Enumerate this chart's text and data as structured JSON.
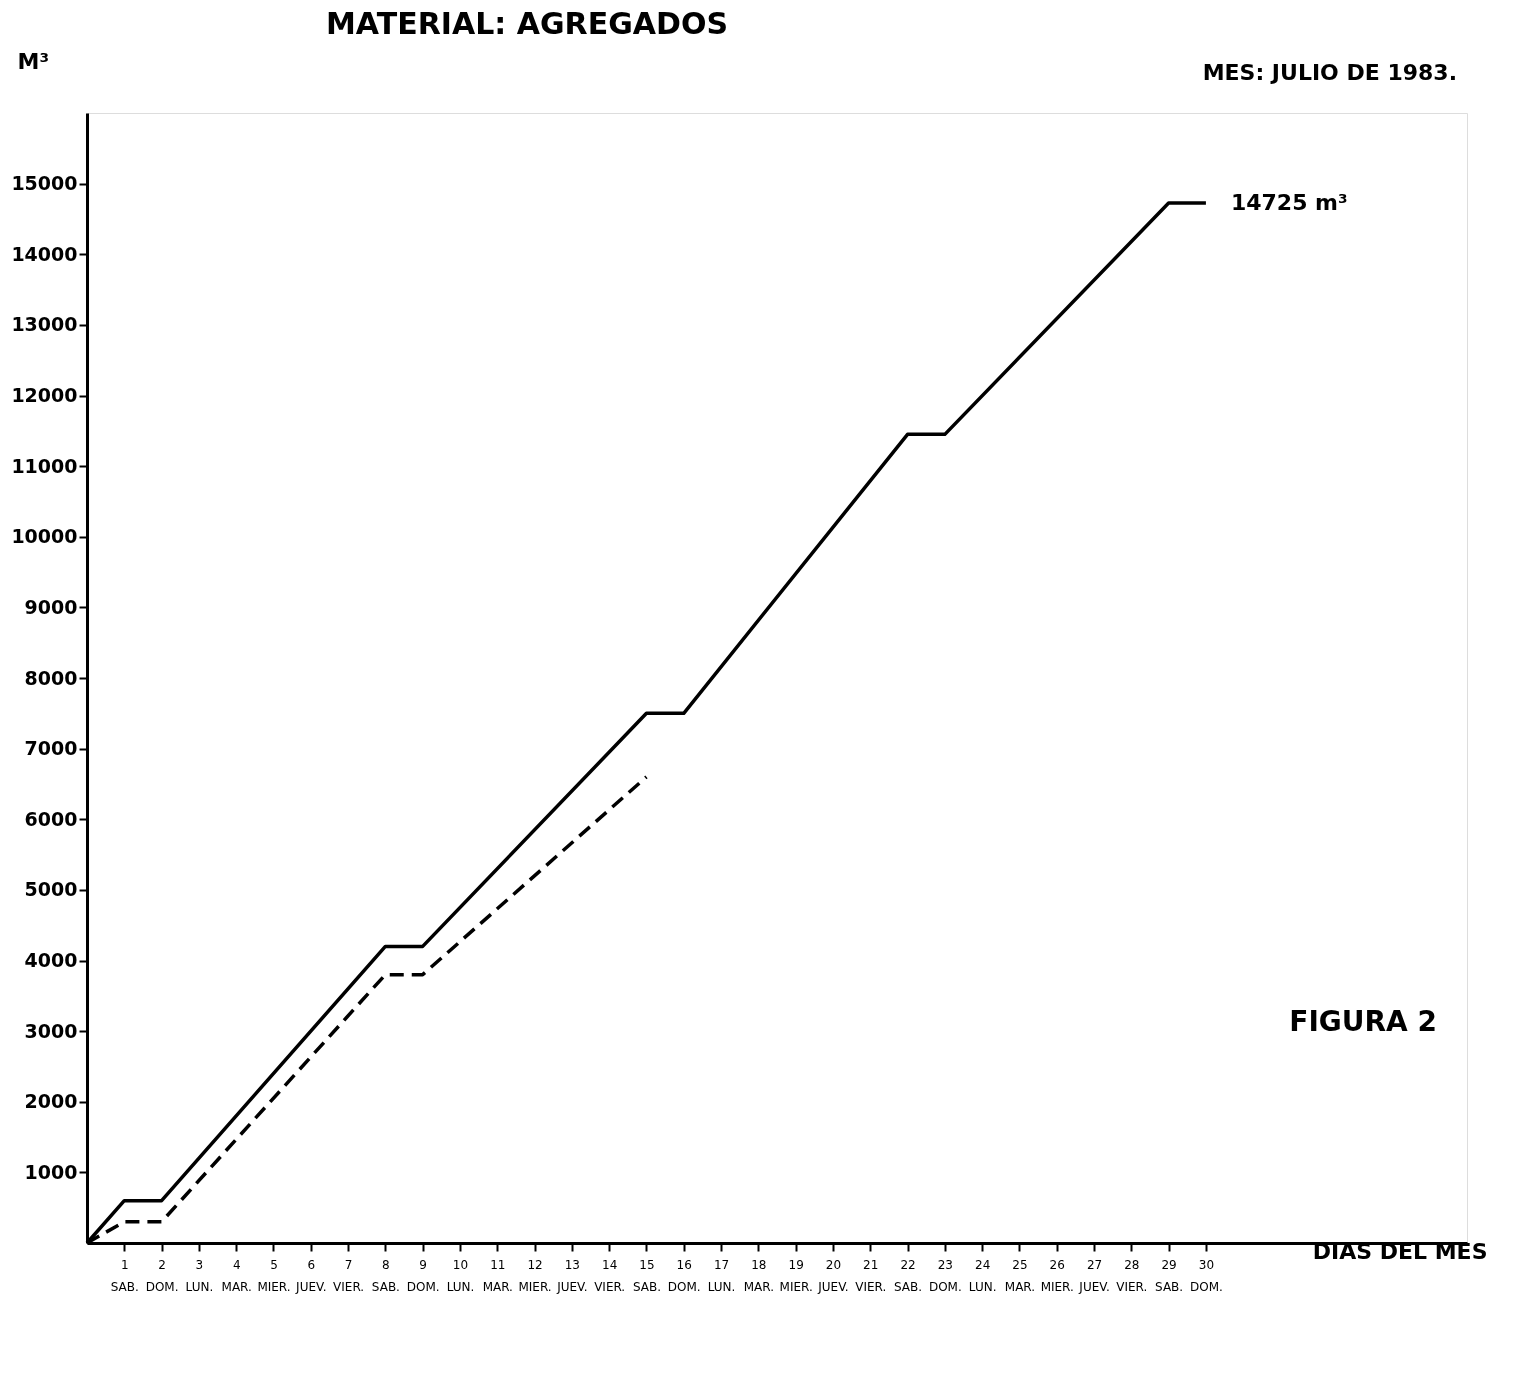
{
  "chart_data": {
    "type": "line",
    "title": "MATERIAL: AGREGADOS",
    "xlabel": "DIAS DEL MES",
    "ylabel": "M³",
    "annotations": [
      {
        "text": "14725 m³",
        "x": 30,
        "y": 14725
      },
      "MES: JULIO DE 1983.",
      "FIGURA 2"
    ],
    "series": [
      {
        "color": "#000000",
        "line_style": "solid",
        "x": [
          0,
          1,
          2,
          8,
          9,
          15,
          16,
          22,
          23,
          29,
          30
        ],
        "values": [
          0,
          600,
          600,
          4200,
          4200,
          7500,
          7500,
          11450,
          11450,
          14725,
          14725
        ]
      },
      {
        "color": "#000000",
        "line_style": "dashed",
        "x": [
          0,
          1,
          2,
          8,
          9,
          15
        ],
        "values": [
          0,
          300,
          300,
          3800,
          3800,
          6600
        ]
      }
    ],
    "xlim": [
      0,
      37
    ],
    "ylim": [
      0,
      16000
    ],
    "xticks": [
      {
        "value": 1,
        "label": "1\nSAB."
      },
      {
        "value": 2,
        "label": "2\nDOM."
      },
      {
        "value": 3,
        "label": "3\nLUN."
      },
      {
        "value": 4,
        "label": "4\nMAR."
      },
      {
        "value": 5,
        "label": "5\nMIER."
      },
      {
        "value": 6,
        "label": "6\nJUEV."
      },
      {
        "value": 7,
        "label": "7\nVIER."
      },
      {
        "value": 8,
        "label": "8\nSAB."
      },
      {
        "value": 9,
        "label": "9\nDOM."
      },
      {
        "value": 10,
        "label": "10\nLUN."
      },
      {
        "value": 11,
        "label": "11\nMAR."
      },
      {
        "value": 12,
        "label": "12\nMIER."
      },
      {
        "value": 13,
        "label": "13\nJUEV."
      },
      {
        "value": 14,
        "label": "14\nVIER."
      },
      {
        "value": 15,
        "label": "15\nSAB."
      },
      {
        "value": 16,
        "label": "16\nDOM."
      },
      {
        "value": 17,
        "label": "17\nLUN."
      },
      {
        "value": 18,
        "label": "18\nMAR."
      },
      {
        "value": 19,
        "label": "19\nMIER."
      },
      {
        "value": 20,
        "label": "20\nJUEV."
      },
      {
        "value": 21,
        "label": "21\nVIER."
      },
      {
        "value": 22,
        "label": "22\nSAB."
      },
      {
        "value": 23,
        "label": "23\nDOM."
      },
      {
        "value": 24,
        "label": "24\nLUN."
      },
      {
        "value": 25,
        "label": "25\nMAR."
      },
      {
        "value": 26,
        "label": "26\nMIER."
      },
      {
        "value": 27,
        "label": "27\nJUEV."
      },
      {
        "value": 28,
        "label": "28\nVIER."
      },
      {
        "value": 29,
        "label": "29\nSAB."
      },
      {
        "value": 30,
        "label": "30\nDOM."
      }
    ],
    "yticks": [
      1000,
      2000,
      3000,
      4000,
      5000,
      6000,
      7000,
      8000,
      9000,
      10000,
      11000,
      12000,
      13000,
      14000,
      15000
    ],
    "grid": false,
    "marker": "none"
  }
}
